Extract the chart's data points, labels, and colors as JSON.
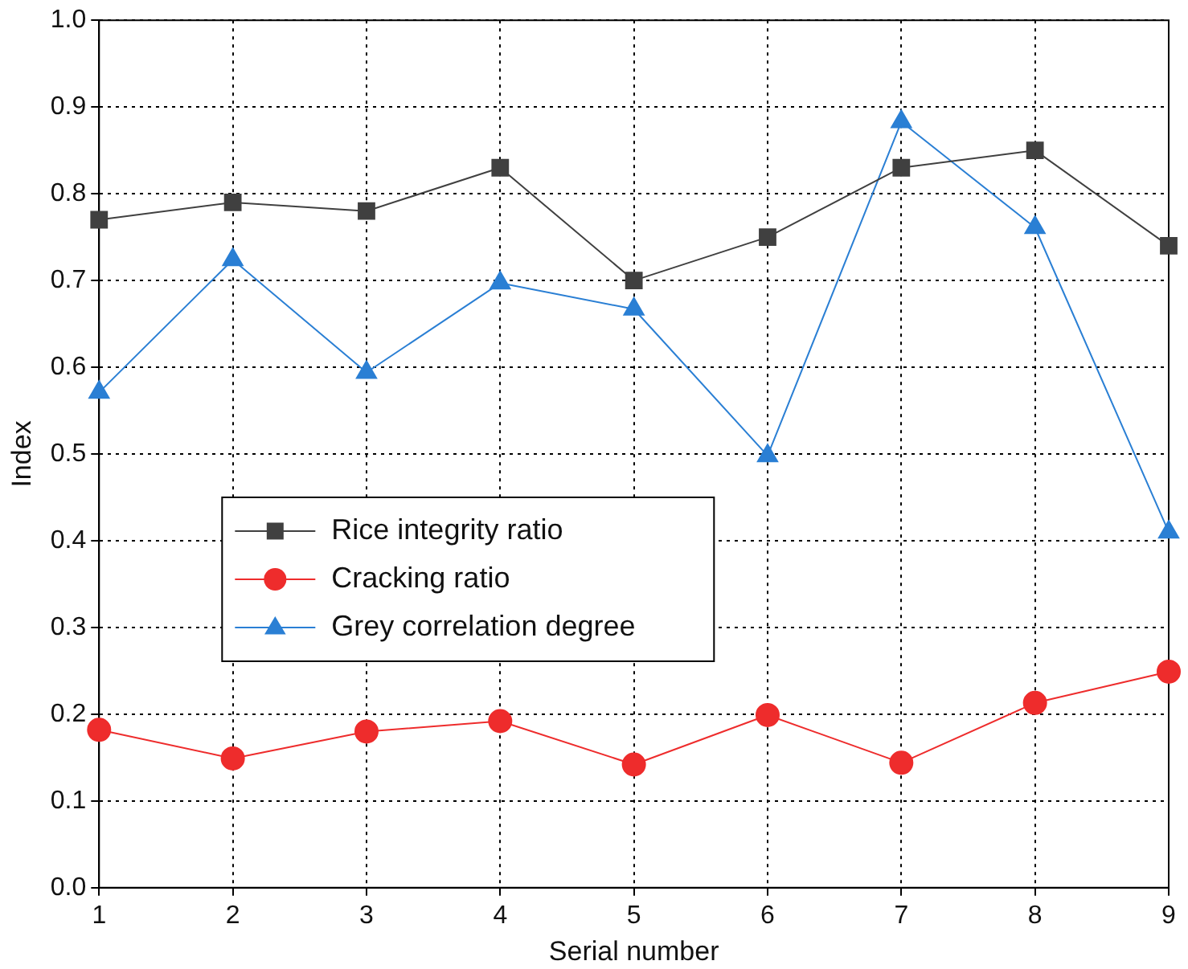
{
  "chart_data": {
    "type": "line",
    "xlabel": "Serial number",
    "ylabel": "Index",
    "x": [
      1,
      2,
      3,
      4,
      5,
      6,
      7,
      8,
      9
    ],
    "xlim": [
      1,
      9
    ],
    "xticks": [
      1,
      2,
      3,
      4,
      5,
      6,
      7,
      8,
      9
    ],
    "ylim": [
      0,
      1
    ],
    "yticks": [
      {
        "value": 0,
        "label": "0.0"
      },
      0.1,
      0.2,
      0.3,
      0.4,
      0.5,
      0.6,
      0.7,
      0.8,
      0.9,
      {
        "value": 1,
        "label": "1.0"
      }
    ],
    "grid": true,
    "legend": "center left",
    "line_style": "solid",
    "series": [
      {
        "name": "Rice integrity ratio",
        "color": "#404040",
        "marker": "square",
        "values": [
          0.77,
          0.79,
          0.78,
          0.83,
          0.7,
          0.75,
          0.83,
          0.85,
          0.74
        ]
      },
      {
        "name": "Cracking ratio",
        "color": "#ee2c2c",
        "marker": "circle",
        "values": [
          0.182,
          0.149,
          0.18,
          0.192,
          0.142,
          0.199,
          0.144,
          0.213,
          0.249
        ]
      },
      {
        "name": "Grey correlation degree",
        "color": "#2a7fd4",
        "marker": "triangle",
        "values": [
          0.571,
          0.724,
          0.594,
          0.697,
          0.667,
          0.498,
          0.883,
          0.761,
          0.41
        ]
      }
    ]
  }
}
